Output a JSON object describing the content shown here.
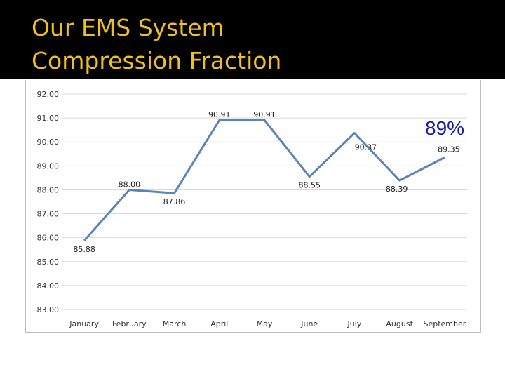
{
  "slide": {
    "title_line1": "Our EMS System",
    "title_line2": "Compression Fraction",
    "callout": "89%"
  },
  "colors": {
    "header_bg": "#000000",
    "title": "#f0c020",
    "series_line": "#5b84b6",
    "gridline": "#d9d9d9",
    "callout": "#1a1aa8"
  },
  "chart_data": {
    "type": "line",
    "categories": [
      "January",
      "February",
      "March",
      "April",
      "May",
      "June",
      "July",
      "August",
      "September"
    ],
    "values": [
      85.88,
      88.0,
      87.86,
      90.91,
      90.91,
      88.55,
      90.37,
      88.39,
      89.35
    ],
    "data_labels": [
      "85.88",
      "88.00",
      "87.86",
      "90.91",
      "90.91",
      "88.55",
      "90.37",
      "88.39",
      "89.35"
    ],
    "y_ticks": [
      "83.00",
      "84.00",
      "85.00",
      "86.00",
      "87.00",
      "88.00",
      "89.00",
      "90.00",
      "91.00",
      "92.00"
    ],
    "ylim": [
      83,
      92
    ],
    "grid": true,
    "legend": "none",
    "title": "",
    "xlabel": "",
    "ylabel": ""
  }
}
